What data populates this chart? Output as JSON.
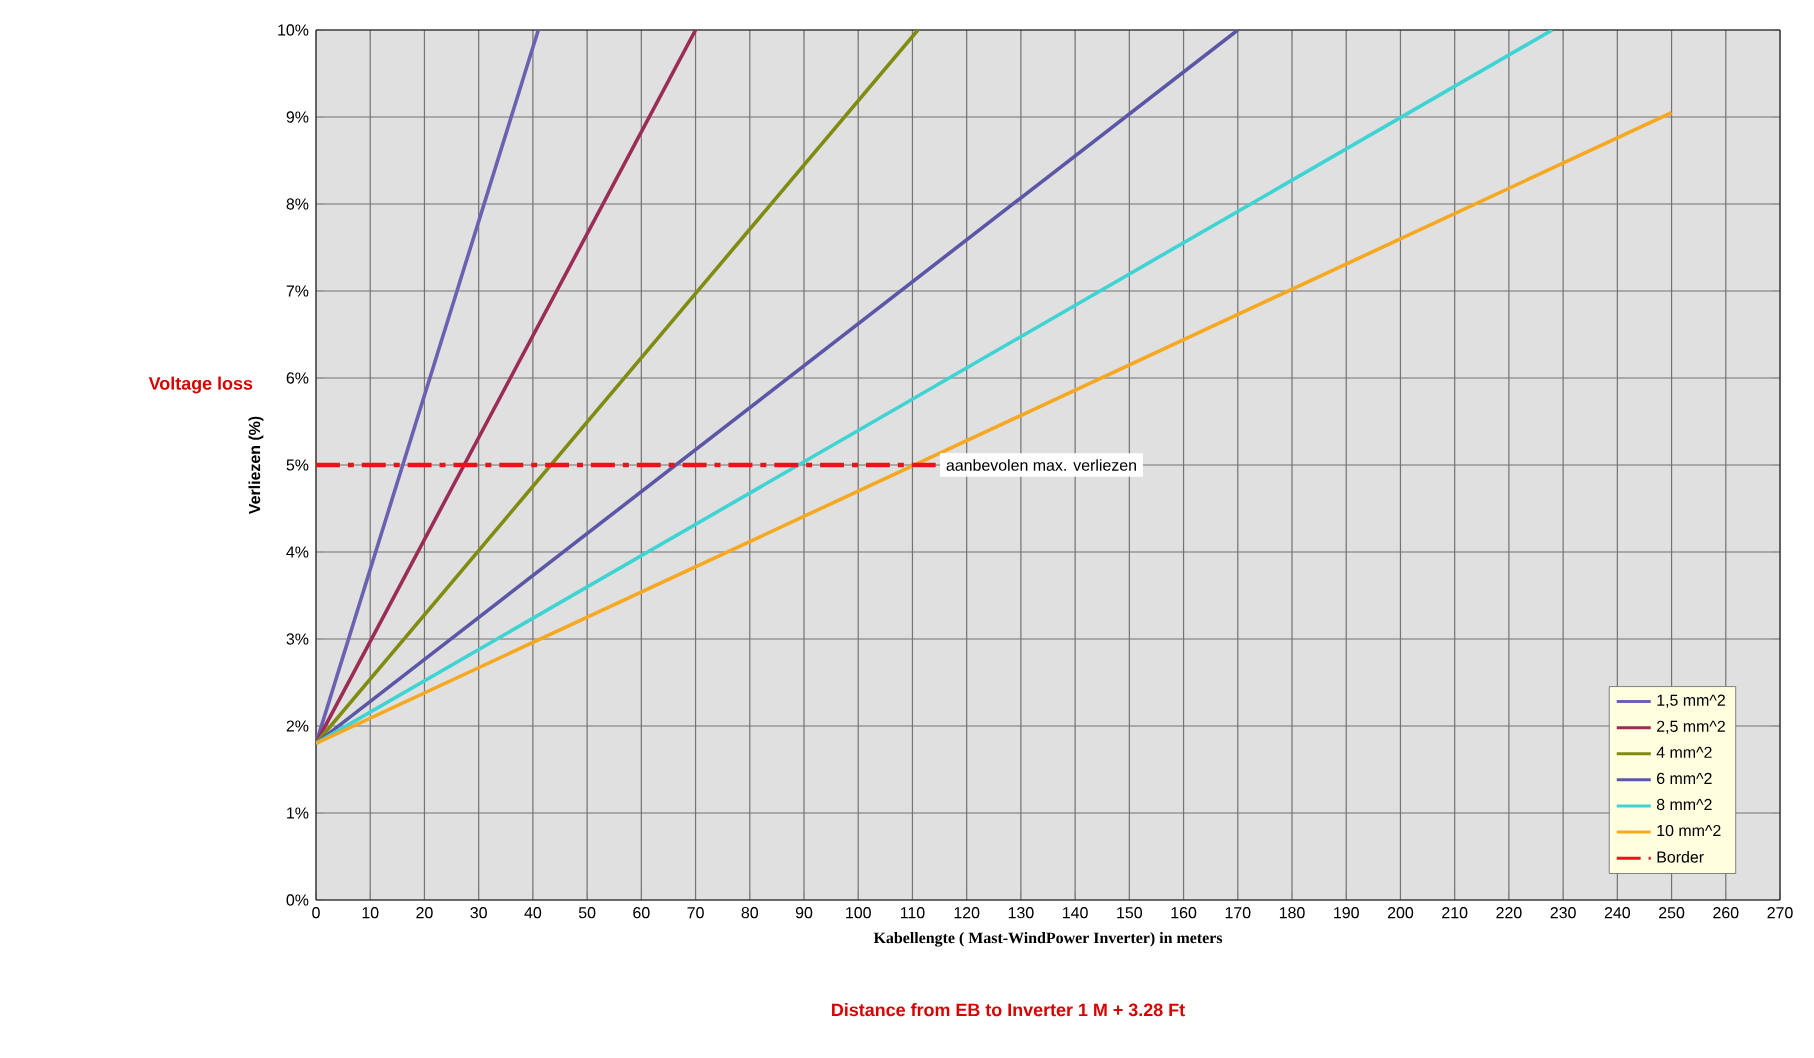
{
  "chart_data": {
    "type": "line",
    "xlabel": "Kabellengte ( Mast-WindPower Inverter) in meters",
    "ylabel": "Verliezen (%)",
    "xlim": [
      0,
      270
    ],
    "ylim": [
      0,
      10
    ],
    "xticks": [
      0,
      10,
      20,
      30,
      40,
      50,
      60,
      70,
      80,
      90,
      100,
      110,
      120,
      130,
      140,
      150,
      160,
      170,
      180,
      190,
      200,
      210,
      220,
      230,
      240,
      250,
      260,
      270
    ],
    "yticks": [
      {
        "value": 0,
        "label": "0%"
      },
      {
        "value": 1,
        "label": "1%"
      },
      {
        "value": 2,
        "label": "2%"
      },
      {
        "value": 3,
        "label": "3%"
      },
      {
        "value": 4,
        "label": "4%"
      },
      {
        "value": 5,
        "label": "5%"
      },
      {
        "value": 6,
        "label": "6%"
      },
      {
        "value": 7,
        "label": "7%"
      },
      {
        "value": 8,
        "label": "8%"
      },
      {
        "value": 9,
        "label": "9%"
      },
      {
        "value": 10,
        "label": "10%"
      }
    ],
    "grid": true,
    "legend": "bottom right",
    "marker": "none",
    "line_style": "solid",
    "series": [
      {
        "name": "1,5 mm^2",
        "color": "#6a62b0",
        "x": [
          0,
          41
        ],
        "values": [
          1.8,
          10
        ]
      },
      {
        "name": "2,5 mm^2",
        "color": "#9a2c55",
        "x": [
          0,
          70
        ],
        "values": [
          1.8,
          10
        ]
      },
      {
        "name": "4 mm^2",
        "color": "#7f8c10",
        "x": [
          0,
          111
        ],
        "values": [
          1.8,
          10
        ]
      },
      {
        "name": "6 mm^2",
        "color": "#5c56a6",
        "x": [
          0,
          170
        ],
        "values": [
          1.8,
          10
        ]
      },
      {
        "name": "8 mm^2",
        "color": "#3fd3d3",
        "x": [
          0,
          228
        ],
        "values": [
          1.8,
          10
        ]
      },
      {
        "name": "10 mm^2",
        "color": "#f6a820",
        "x": [
          0,
          250
        ],
        "values": [
          1.8,
          9.05
        ]
      }
    ],
    "ref_lines": [
      {
        "axis": "y",
        "value": 5,
        "label": "Border",
        "color": "#e8141a",
        "line_style": "dashed"
      }
    ],
    "annotations": [
      {
        "text": "aanbevolen max. verliezen",
        "x": 115,
        "y": 5
      },
      "Voltage loss",
      "Distance from EB to Inverter   1 M + 3.28 Ft"
    ]
  }
}
